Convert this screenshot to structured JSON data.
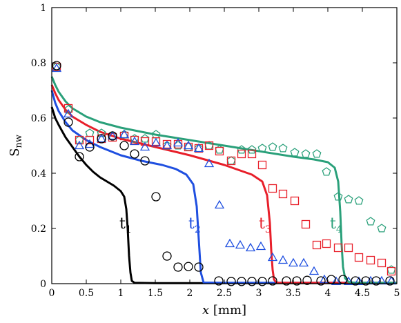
{
  "chart_data": {
    "type": "scatter",
    "title": "",
    "xlabel_var": "x",
    "xlabel_unit": " [mm]",
    "ylabel_main": "S",
    "ylabel_sub": "nw",
    "xlim": [
      0,
      5
    ],
    "ylim": [
      0,
      1
    ],
    "xticks": [
      0,
      0.5,
      1,
      1.5,
      2,
      2.5,
      3,
      3.5,
      4,
      4.5,
      5
    ],
    "xtick_labels": [
      "0",
      "0.5",
      "1",
      "1.5",
      "2",
      "2.5",
      "3",
      "3.5",
      "4",
      "4.5",
      "5"
    ],
    "yticks": [
      0,
      0.2,
      0.4,
      0.6,
      0.8,
      1
    ],
    "ytick_labels": [
      "0",
      "0.2",
      "0.4",
      "0.6",
      "0.8",
      "1"
    ],
    "grid": false,
    "series": [
      {
        "name": "t1",
        "label_main": "t",
        "label_sub": "1",
        "color": "#000000",
        "marker": "circle",
        "curve_x": [
          0,
          0.05,
          0.1,
          0.2,
          0.3,
          0.4,
          0.5,
          0.6,
          0.7,
          0.8,
          0.9,
          1.0,
          1.05,
          1.08,
          1.1,
          1.12,
          1.14,
          1.16,
          1.2,
          1.5,
          2.0,
          3.0,
          4.0,
          5.0
        ],
        "curve_y": [
          0.64,
          0.6,
          0.575,
          0.53,
          0.495,
          0.46,
          0.43,
          0.405,
          0.385,
          0.37,
          0.355,
          0.335,
          0.315,
          0.27,
          0.2,
          0.1,
          0.04,
          0.01,
          0.003,
          0.002,
          0.002,
          0.002,
          0.002,
          0.002
        ],
        "points_x": [
          0.07,
          0.24,
          0.4,
          0.55,
          0.72,
          0.88,
          1.05,
          1.2,
          1.35,
          1.51,
          1.67,
          1.83,
          1.98,
          2.13,
          2.42,
          2.6,
          2.75,
          2.9,
          3.05,
          3.2,
          3.4,
          3.55,
          3.7,
          3.9,
          4.05,
          4.22,
          4.4,
          4.55,
          4.7,
          4.9
        ],
        "points_y": [
          0.79,
          0.585,
          0.46,
          0.495,
          0.525,
          0.535,
          0.5,
          0.47,
          0.445,
          0.315,
          0.1,
          0.06,
          0.062,
          0.06,
          0.01,
          0.008,
          0.008,
          0.008,
          0.008,
          0.01,
          0.01,
          0.01,
          0.012,
          0.01,
          0.015,
          0.015,
          0.01,
          0.01,
          0.01,
          0.01
        ]
      },
      {
        "name": "t2",
        "label_main": "t",
        "label_sub": "2",
        "color": "#1f4fe0",
        "marker": "triangle",
        "curve_x": [
          0,
          0.05,
          0.1,
          0.2,
          0.3,
          0.5,
          0.7,
          1.0,
          1.3,
          1.6,
          1.8,
          1.95,
          2.05,
          2.1,
          2.13,
          2.16,
          2.2,
          2.5,
          3.0,
          4.0,
          5.0
        ],
        "curve_y": [
          0.7,
          0.655,
          0.625,
          0.585,
          0.555,
          0.52,
          0.495,
          0.465,
          0.445,
          0.43,
          0.415,
          0.395,
          0.36,
          0.28,
          0.16,
          0.04,
          0.004,
          0.003,
          0.003,
          0.003,
          0.003
        ],
        "points_x": [
          0.07,
          0.24,
          0.4,
          0.55,
          0.72,
          0.88,
          1.05,
          1.2,
          1.35,
          1.51,
          1.67,
          1.83,
          1.98,
          2.13,
          2.28,
          2.43,
          2.58,
          2.73,
          2.88,
          3.03,
          3.2,
          3.35,
          3.5,
          3.65,
          3.8,
          3.95,
          4.12,
          4.3,
          4.45,
          4.62,
          4.78,
          4.92
        ],
        "points_y": [
          0.78,
          0.615,
          0.5,
          0.505,
          0.525,
          0.535,
          0.54,
          0.515,
          0.495,
          0.51,
          0.5,
          0.51,
          0.5,
          0.49,
          0.435,
          0.285,
          0.145,
          0.14,
          0.13,
          0.135,
          0.095,
          0.085,
          0.075,
          0.075,
          0.045,
          0.015,
          0.008,
          0.008,
          0.008,
          0.01,
          0.01,
          0.01
        ]
      },
      {
        "name": "t3",
        "label_main": "t",
        "label_sub": "3",
        "color": "#e81f2a",
        "marker": "square",
        "curve_x": [
          0,
          0.05,
          0.1,
          0.2,
          0.3,
          0.5,
          0.7,
          1.0,
          1.5,
          2.0,
          2.5,
          2.9,
          3.05,
          3.12,
          3.16,
          3.18,
          3.2,
          3.22,
          3.25,
          3.3,
          4.0,
          5.0
        ],
        "curve_y": [
          0.72,
          0.69,
          0.665,
          0.63,
          0.605,
          0.575,
          0.55,
          0.525,
          0.495,
          0.465,
          0.43,
          0.395,
          0.37,
          0.32,
          0.22,
          0.12,
          0.05,
          0.015,
          0.005,
          0.003,
          0.003,
          0.003
        ],
        "points_x": [
          0.07,
          0.24,
          0.4,
          0.55,
          0.72,
          0.88,
          1.05,
          1.2,
          1.35,
          1.51,
          1.67,
          1.83,
          1.98,
          2.13,
          2.28,
          2.43,
          2.6,
          2.75,
          2.9,
          3.05,
          3.2,
          3.35,
          3.52,
          3.68,
          3.84,
          3.98,
          4.15,
          4.3,
          4.45,
          4.62,
          4.78,
          4.92
        ],
        "points_y": [
          0.785,
          0.635,
          0.52,
          0.52,
          0.525,
          0.53,
          0.535,
          0.52,
          0.515,
          0.515,
          0.505,
          0.505,
          0.495,
          0.49,
          0.5,
          0.48,
          0.445,
          0.47,
          0.47,
          0.43,
          0.345,
          0.325,
          0.3,
          0.215,
          0.14,
          0.145,
          0.13,
          0.13,
          0.095,
          0.085,
          0.075,
          0.045
        ]
      },
      {
        "name": "t4",
        "label_main": "t",
        "label_sub": "4",
        "color": "#2aa07a",
        "marker": "pentagon",
        "curve_x": [
          0,
          0.05,
          0.1,
          0.2,
          0.3,
          0.5,
          0.7,
          1.0,
          1.5,
          2.0,
          2.5,
          3.0,
          3.5,
          3.8,
          4.0,
          4.1,
          4.15,
          4.18,
          4.2,
          4.22,
          4.25,
          4.3,
          4.4,
          5.0
        ],
        "curve_y": [
          0.75,
          0.72,
          0.695,
          0.66,
          0.635,
          0.605,
          0.585,
          0.565,
          0.54,
          0.52,
          0.5,
          0.48,
          0.46,
          0.45,
          0.44,
          0.42,
          0.37,
          0.26,
          0.14,
          0.06,
          0.02,
          0.006,
          0.003,
          0.003
        ],
        "points_x": [
          0.07,
          0.24,
          0.4,
          0.55,
          0.72,
          0.88,
          1.05,
          1.2,
          1.35,
          1.51,
          1.67,
          1.83,
          1.98,
          2.13,
          2.28,
          2.43,
          2.6,
          2.75,
          2.9,
          3.05,
          3.2,
          3.35,
          3.52,
          3.68,
          3.84,
          3.98,
          4.15,
          4.3,
          4.45,
          4.62,
          4.78,
          4.92
        ],
        "points_y": [
          0.785,
          0.63,
          0.52,
          0.545,
          0.545,
          0.535,
          0.54,
          0.525,
          0.525,
          0.54,
          0.5,
          0.5,
          0.495,
          0.49,
          0.5,
          0.485,
          0.445,
          0.485,
          0.485,
          0.49,
          0.495,
          0.49,
          0.475,
          0.47,
          0.47,
          0.405,
          0.315,
          0.305,
          0.3,
          0.225,
          0.2,
          0.05
        ]
      }
    ],
    "curve_labels": [
      {
        "series": "t1",
        "x": 0.98,
        "y": 0.2
      },
      {
        "series": "t2",
        "x": 1.98,
        "y": 0.2
      },
      {
        "series": "t3",
        "x": 3.0,
        "y": 0.2
      },
      {
        "series": "t4",
        "x": 4.03,
        "y": 0.2
      }
    ]
  }
}
